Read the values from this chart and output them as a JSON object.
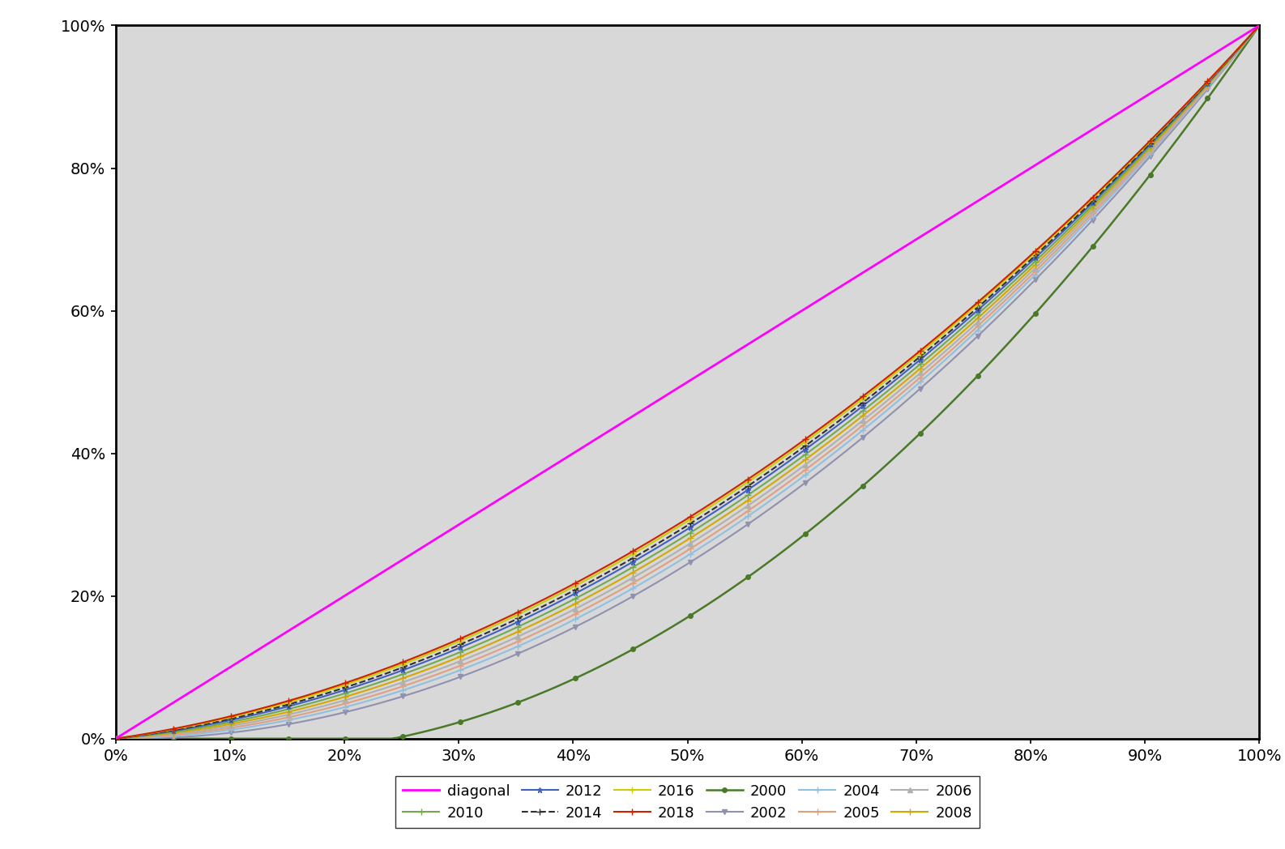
{
  "background_color": "#d8d8d8",
  "plot_bg_color": "#d8d8d8",
  "outer_bg_color": "#ffffff",
  "diagonal_color": "#ff00ff",
  "series_order_plot": [
    "2000",
    "2002",
    "2004",
    "2005",
    "2006",
    "2008",
    "2010",
    "2012",
    "2014",
    "2016",
    "2018"
  ],
  "legend_order": [
    "diagonal",
    "2010",
    "2012",
    "2014",
    "2016",
    "2018",
    "2000",
    "2002",
    "2004",
    "2005",
    "2006",
    "2008"
  ],
  "legend_ncol": 6,
  "xlim": [
    0,
    1
  ],
  "ylim": [
    0,
    1
  ],
  "xticks": [
    0.0,
    0.1,
    0.2,
    0.3,
    0.4,
    0.5,
    0.6,
    0.7,
    0.8,
    0.9,
    1.0
  ],
  "yticks": [
    0.0,
    0.2,
    0.4,
    0.6,
    0.8,
    1.0
  ],
  "series": {
    "2000": {
      "gini": 0.44,
      "color": "#4a7a28",
      "marker": "o",
      "markersize": 4,
      "linestyle": "-",
      "linewidth": 1.8,
      "markevery": 10
    },
    "2002": {
      "gini": 0.34,
      "color": "#9090b0",
      "marker": "v",
      "markersize": 4,
      "linestyle": "-",
      "linewidth": 1.5,
      "markevery": 10
    },
    "2004": {
      "gini": 0.325,
      "color": "#90c0e0",
      "marker": "+",
      "markersize": 6,
      "linestyle": "-",
      "linewidth": 1.5,
      "markevery": 10
    },
    "2005": {
      "gini": 0.315,
      "color": "#e0a080",
      "marker": "+",
      "markersize": 6,
      "linestyle": "-",
      "linewidth": 1.5,
      "markevery": 10
    },
    "2006": {
      "gini": 0.305,
      "color": "#b0b0b0",
      "marker": "^",
      "markersize": 4,
      "linestyle": "-",
      "linewidth": 1.5,
      "markevery": 10
    },
    "2008": {
      "gini": 0.295,
      "color": "#d4a800",
      "marker": "+",
      "markersize": 6,
      "linestyle": "-",
      "linewidth": 1.5,
      "markevery": 10
    },
    "2010": {
      "gini": 0.285,
      "color": "#70aa50",
      "marker": "+",
      "markersize": 6,
      "linestyle": "-",
      "linewidth": 1.5,
      "markevery": 10
    },
    "2012": {
      "gini": 0.275,
      "color": "#4060c0",
      "marker": "*",
      "markersize": 5,
      "linestyle": "-",
      "linewidth": 1.5,
      "markevery": 10
    },
    "2014": {
      "gini": 0.268,
      "color": "#303030",
      "marker": "+",
      "markersize": 6,
      "linestyle": "--",
      "linewidth": 1.5,
      "markevery": 10
    },
    "2016": {
      "gini": 0.26,
      "color": "#cccc00",
      "marker": "+",
      "markersize": 6,
      "linestyle": "-",
      "linewidth": 1.5,
      "markevery": 10
    },
    "2018": {
      "gini": 0.255,
      "color": "#cc2200",
      "marker": "+",
      "markersize": 6,
      "linestyle": "-",
      "linewidth": 1.5,
      "markevery": 10
    }
  }
}
